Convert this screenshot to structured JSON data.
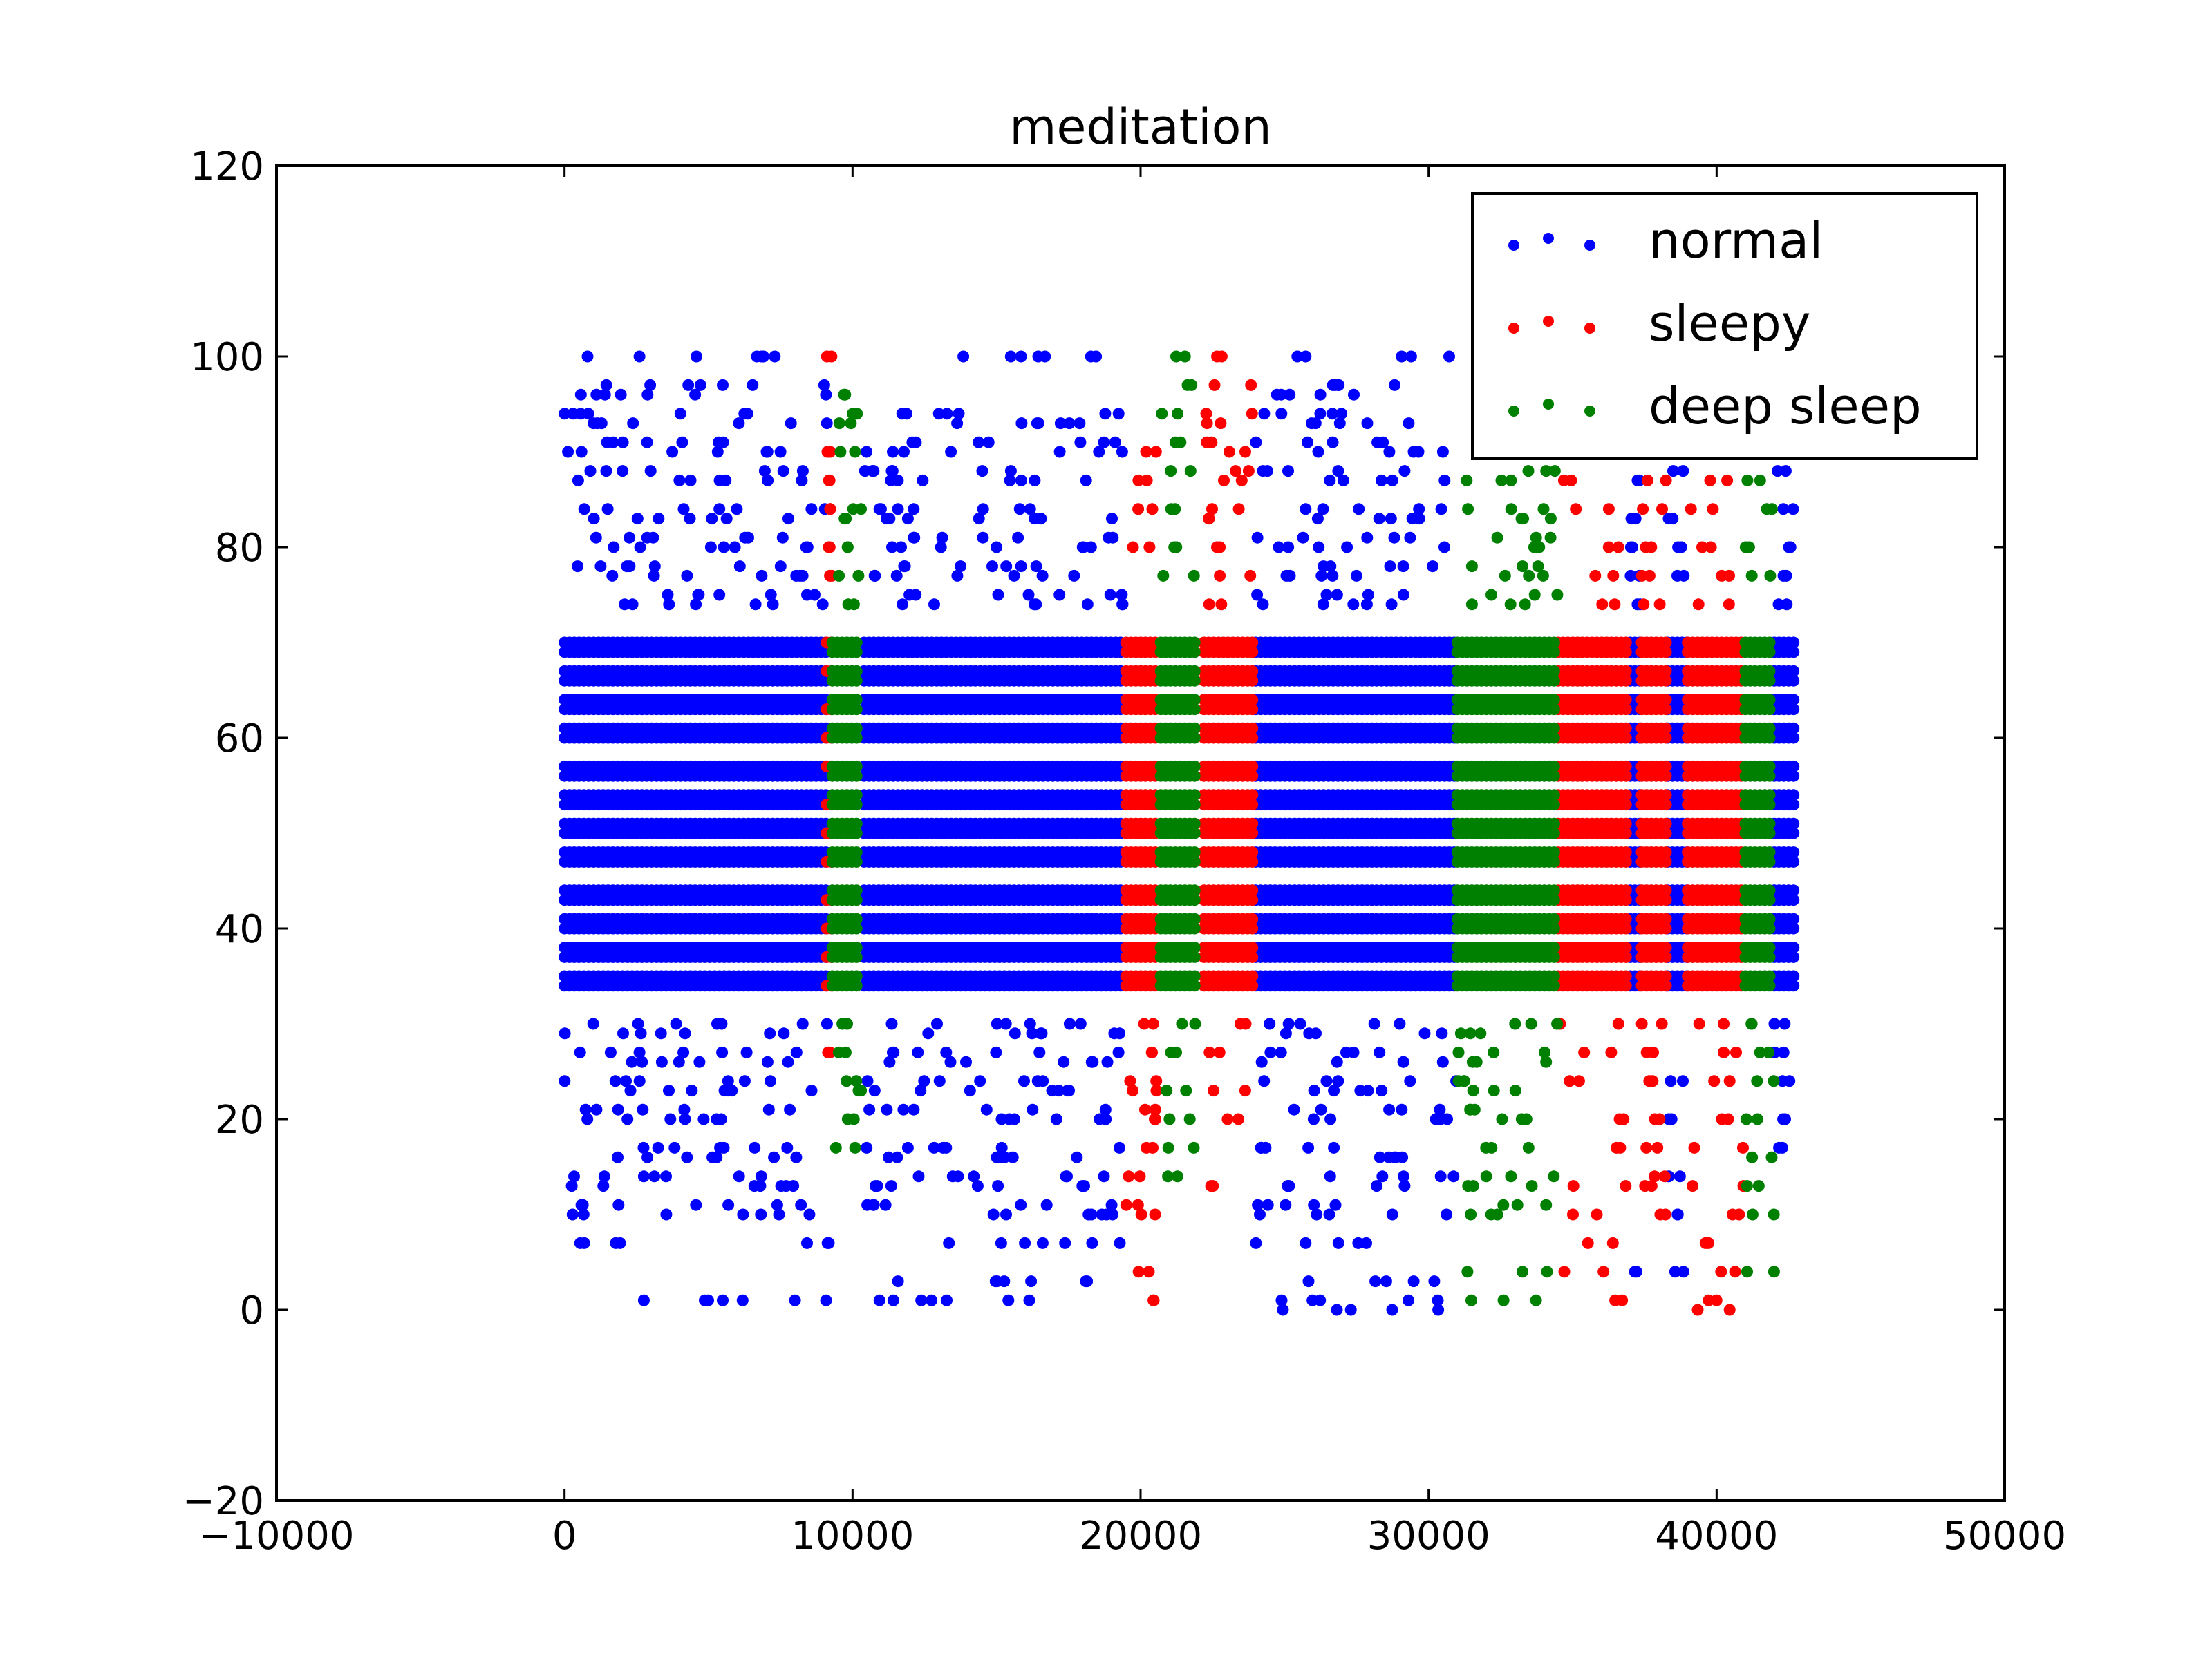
{
  "chart_data": {
    "type": "scatter",
    "title": "meditation",
    "xlabel": "",
    "ylabel": "",
    "xlim": [
      -10000,
      50000
    ],
    "ylim": [
      -20,
      120
    ],
    "xticks": [
      -10000,
      0,
      10000,
      20000,
      30000,
      40000,
      50000
    ],
    "xtick_labels": [
      "−10000",
      "0",
      "10000",
      "20000",
      "30000",
      "40000",
      "50000"
    ],
    "yticks": [
      -20,
      0,
      20,
      40,
      60,
      80,
      100,
      120
    ],
    "ytick_labels": [
      "−20",
      "0",
      "20",
      "40",
      "60",
      "80",
      "100",
      "120"
    ],
    "grid": false,
    "legend_position": "top-right",
    "series": [
      {
        "name": "normal",
        "color": "#0000ff",
        "segments": [
          {
            "x_range": [
              0,
              9200
            ],
            "core_levels": [
              34,
              35,
              37,
              38,
              40,
              41,
              43,
              44,
              47,
              48,
              50,
              51,
              53,
              54,
              56,
              57,
              60,
              61,
              63,
              64,
              66,
              67,
              69,
              70
            ],
            "sparse_levels": [
              1,
              7,
              10,
              11,
              13,
              14,
              16,
              17,
              20,
              21,
              23,
              24,
              26,
              27,
              29,
              30,
              74,
              75,
              77,
              78,
              80,
              81,
              83,
              84,
              87,
              88,
              90,
              91,
              93,
              94,
              96,
              97,
              100
            ]
          },
          {
            "x_range": [
              10400,
              19400
            ],
            "core_levels": [
              34,
              35,
              37,
              38,
              40,
              41,
              43,
              44,
              47,
              48,
              50,
              51,
              53,
              54,
              56,
              57,
              60,
              61,
              63,
              64,
              66,
              67,
              69,
              70
            ],
            "sparse_levels": [
              1,
              3,
              7,
              10,
              11,
              13,
              14,
              16,
              17,
              20,
              21,
              23,
              24,
              26,
              27,
              29,
              30,
              74,
              75,
              77,
              78,
              80,
              81,
              83,
              84,
              87,
              88,
              90,
              91,
              93,
              94,
              100
            ]
          },
          {
            "x_range": [
              24000,
              31000
            ],
            "core_levels": [
              34,
              35,
              37,
              38,
              40,
              41,
              43,
              44,
              47,
              48,
              50,
              51,
              53,
              54,
              56,
              57,
              60,
              61,
              63,
              64,
              66,
              67,
              69,
              70
            ],
            "sparse_levels": [
              0,
              1,
              3,
              7,
              10,
              11,
              13,
              14,
              16,
              17,
              20,
              21,
              23,
              24,
              26,
              27,
              29,
              30,
              74,
              75,
              77,
              78,
              80,
              81,
              83,
              84,
              87,
              88,
              90,
              91,
              93,
              94,
              96,
              97,
              100
            ]
          },
          {
            "x_range": [
              37000,
              37400
            ],
            "core_levels": [
              34,
              35,
              37,
              38,
              40,
              41,
              43,
              44,
              47,
              48,
              50,
              51,
              53,
              54,
              56,
              57,
              60,
              61,
              63,
              64,
              66,
              67,
              69,
              70
            ],
            "sparse_levels": [
              4,
              74,
              77,
              80,
              83,
              87
            ]
          },
          {
            "x_range": [
              38300,
              39000
            ],
            "core_levels": [
              34,
              35,
              37,
              38,
              40,
              41,
              43,
              44,
              47,
              48,
              50,
              51,
              53,
              54,
              56,
              57,
              60,
              61,
              63,
              64,
              66,
              67,
              69,
              70
            ],
            "sparse_levels": [
              4,
              10,
              14,
              20,
              24,
              77,
              80,
              83,
              88
            ]
          },
          {
            "x_range": [
              42000,
              42800
            ],
            "core_levels": [
              34,
              35,
              37,
              38,
              40,
              41,
              43,
              44,
              47,
              48,
              50,
              51,
              53,
              54,
              56,
              57,
              60,
              61,
              63,
              64,
              66,
              67,
              69,
              70
            ],
            "sparse_levels": [
              17,
              20,
              24,
              27,
              30,
              74,
              77,
              80,
              84,
              88
            ]
          }
        ]
      },
      {
        "name": "sleepy",
        "color": "#ff0000",
        "segments": [
          {
            "x_range": [
              9100,
              9300
            ],
            "core_levels": [
              34,
              37,
              40,
              43,
              47,
              50,
              53,
              57,
              60,
              63,
              67,
              70
            ],
            "sparse_levels": [
              27,
              77,
              80,
              84,
              87,
              90,
              100
            ]
          },
          {
            "x_range": [
              19500,
              20600
            ],
            "core_levels": [
              34,
              35,
              37,
              38,
              40,
              41,
              43,
              44,
              47,
              48,
              50,
              51,
              53,
              54,
              56,
              57,
              60,
              61,
              63,
              64,
              66,
              67,
              69,
              70
            ],
            "sparse_levels": [
              1,
              4,
              10,
              11,
              14,
              17,
              20,
              21,
              23,
              24,
              27,
              30,
              80,
              84,
              87,
              90
            ]
          },
          {
            "x_range": [
              22200,
              24000
            ],
            "core_levels": [
              34,
              35,
              37,
              38,
              40,
              41,
              43,
              44,
              47,
              48,
              50,
              51,
              53,
              54,
              56,
              57,
              60,
              61,
              63,
              64,
              66,
              67,
              69,
              70
            ],
            "sparse_levels": [
              13,
              20,
              23,
              27,
              30,
              74,
              77,
              80,
              83,
              84,
              87,
              88,
              90,
              91,
              93,
              94,
              97,
              100
            ]
          },
          {
            "x_range": [
              34500,
              37000
            ],
            "core_levels": [
              34,
              35,
              37,
              38,
              40,
              41,
              43,
              44,
              47,
              48,
              50,
              51,
              53,
              54,
              56,
              57,
              60,
              61,
              63,
              64,
              66,
              67,
              69,
              70
            ],
            "sparse_levels": [
              1,
              4,
              7,
              10,
              13,
              17,
              20,
              24,
              27,
              30,
              74,
              77,
              80,
              84,
              87
            ]
          },
          {
            "x_range": [
              37400,
              38300
            ],
            "core_levels": [
              34,
              35,
              37,
              38,
              40,
              41,
              43,
              44,
              47,
              48,
              50,
              51,
              53,
              54,
              56,
              57,
              60,
              61,
              63,
              64,
              66,
              67,
              69,
              70
            ],
            "sparse_levels": [
              10,
              13,
              14,
              17,
              20,
              24,
              27,
              30,
              74,
              77,
              80,
              84,
              87
            ]
          },
          {
            "x_range": [
              39000,
              41000
            ],
            "core_levels": [
              34,
              35,
              37,
              38,
              40,
              41,
              43,
              44,
              47,
              48,
              50,
              51,
              53,
              54,
              56,
              57,
              60,
              61,
              63,
              64,
              66,
              67,
              69,
              70
            ],
            "sparse_levels": [
              0,
              1,
              4,
              7,
              10,
              13,
              17,
              20,
              24,
              27,
              30,
              74,
              77,
              80,
              84,
              87
            ]
          }
        ]
      },
      {
        "name": "deep sleep",
        "color": "#008000",
        "segments": [
          {
            "x_range": [
              9300,
              10300
            ],
            "core_levels": [
              34,
              35,
              37,
              38,
              40,
              41,
              43,
              44,
              47,
              48,
              50,
              51,
              53,
              54,
              56,
              57,
              60,
              61,
              63,
              64,
              66,
              67,
              69,
              70
            ],
            "sparse_levels": [
              17,
              20,
              23,
              24,
              27,
              30,
              74,
              77,
              80,
              83,
              84,
              90,
              93,
              94,
              96
            ]
          },
          {
            "x_range": [
              20700,
              21900
            ],
            "core_levels": [
              34,
              35,
              37,
              38,
              40,
              41,
              43,
              44,
              47,
              48,
              50,
              51,
              53,
              54,
              56,
              57,
              60,
              61,
              63,
              64,
              66,
              67,
              69,
              70
            ],
            "sparse_levels": [
              14,
              17,
              20,
              23,
              27,
              30,
              77,
              80,
              84,
              88,
              91,
              94,
              97,
              100
            ]
          },
          {
            "x_range": [
              31000,
              34500
            ],
            "core_levels": [
              34,
              35,
              37,
              38,
              40,
              41,
              43,
              44,
              47,
              48,
              50,
              51,
              53,
              54,
              56,
              57,
              60,
              61,
              63,
              64,
              66,
              67,
              69,
              70
            ],
            "sparse_levels": [
              1,
              4,
              10,
              11,
              13,
              14,
              17,
              20,
              21,
              23,
              24,
              26,
              27,
              29,
              30,
              74,
              75,
              77,
              78,
              80,
              81,
              83,
              84,
              87,
              88,
              91,
              93,
              94,
              97,
              100
            ]
          },
          {
            "x_range": [
              41000,
              42000
            ],
            "core_levels": [
              34,
              35,
              37,
              38,
              40,
              41,
              43,
              44,
              47,
              48,
              50,
              51,
              53,
              54,
              56,
              57,
              60,
              61,
              63,
              64,
              66,
              67,
              69,
              70
            ],
            "sparse_levels": [
              4,
              10,
              13,
              16,
              20,
              24,
              27,
              30,
              77,
              80,
              84,
              87
            ]
          }
        ]
      }
    ]
  }
}
